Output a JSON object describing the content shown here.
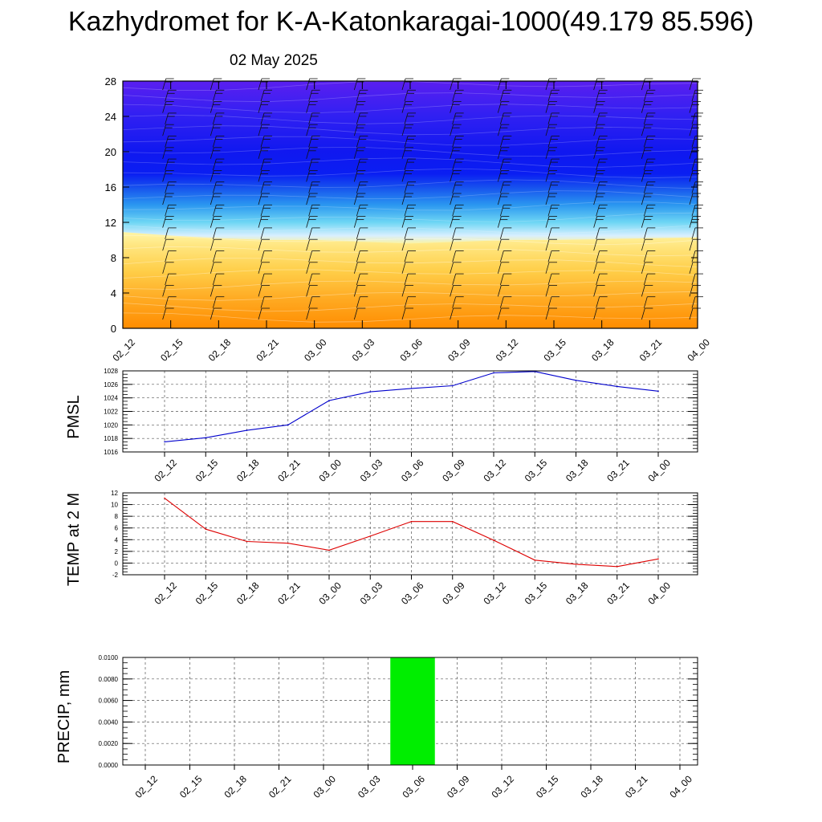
{
  "header": {
    "title": "Kazhydromet for K-A-Katonkaragai-1000(49.179 85.596)",
    "date": "02 May 2025"
  },
  "chart_data": [
    {
      "type": "heatmap",
      "name": "cross-section",
      "title": "",
      "xlabel": "",
      "ylabel": "",
      "ylim": [
        0,
        28
      ],
      "yticks": [
        "0",
        "4",
        "8",
        "12",
        "16",
        "20",
        "24",
        "28"
      ],
      "x": [
        "02_12",
        "02_15",
        "02_18",
        "02_21",
        "03_00",
        "03_03",
        "03_06",
        "03_09",
        "03_12",
        "03_15",
        "03_18",
        "03_21",
        "04_00"
      ],
      "bands": [
        {
          "y": 0,
          "color": "#ff8c00"
        },
        {
          "y": 2,
          "color": "#ff9a10"
        },
        {
          "y": 4,
          "color": "#ffaa20"
        },
        {
          "y": 6,
          "color": "#ffc43c"
        },
        {
          "y": 8,
          "color": "#ffdd66"
        },
        {
          "y": 9.5,
          "color": "#fff49a"
        },
        {
          "y": 10.5,
          "color": "#d8efff"
        },
        {
          "y": 12,
          "color": "#6ed6f4"
        },
        {
          "y": 14,
          "color": "#2a96f0"
        },
        {
          "y": 16,
          "color": "#1650ee"
        },
        {
          "y": 17.5,
          "color": "#0a1ef2"
        },
        {
          "y": 20,
          "color": "#1018f0"
        },
        {
          "y": 24,
          "color": "#3020f2"
        },
        {
          "y": 28,
          "color": "#5a1ff0"
        }
      ],
      "boundary_y": [
        10.9,
        10.5,
        10.2,
        10.0,
        10.0,
        9.8,
        9.6,
        9.8,
        10.0,
        10.0,
        10.1,
        10.2,
        10.3
      ]
    },
    {
      "type": "line",
      "name": "pmsl",
      "ylabel": "PMSL",
      "ylim": [
        1016,
        1028
      ],
      "yticks": [
        "1016",
        "1018",
        "1020",
        "1022",
        "1024",
        "1026",
        "1028"
      ],
      "categories": [
        "02_12",
        "02_15",
        "02_18",
        "02_21",
        "03_00",
        "03_03",
        "03_06",
        "03_09",
        "03_12",
        "03_15",
        "03_18",
        "03_21",
        "04_00"
      ],
      "series": [
        {
          "color": "#0000cc",
          "values": [
            1017.5,
            1018.1,
            1019.2,
            1020.0,
            1023.6,
            1024.9,
            1025.4,
            1025.8,
            1027.7,
            1027.9,
            1026.6,
            1025.7,
            1025.0
          ]
        }
      ],
      "grid": true
    },
    {
      "type": "line",
      "name": "temp",
      "ylabel": "TEMP at 2 M",
      "ylim": [
        -2,
        12
      ],
      "yticks": [
        "-2",
        "0",
        "2",
        "4",
        "6",
        "8",
        "10",
        "12"
      ],
      "categories": [
        "02_12",
        "02_15",
        "02_18",
        "02_21",
        "03_00",
        "03_03",
        "03_06",
        "03_09",
        "03_12",
        "03_15",
        "03_18",
        "03_21",
        "04_00"
      ],
      "series": [
        {
          "color": "#dd0000",
          "values": [
            11.1,
            5.8,
            3.7,
            3.4,
            2.2,
            4.6,
            7.1,
            7.1,
            3.9,
            0.5,
            -0.2,
            -0.6,
            0.7
          ]
        }
      ],
      "grid": true
    },
    {
      "type": "bar",
      "name": "precip",
      "ylabel": "PRECIP, mm",
      "ylim": [
        0,
        0.01
      ],
      "yticks": [
        "0.0000",
        "0.0020",
        "0.0040",
        "0.0060",
        "0.0080",
        "0.0100"
      ],
      "categories": [
        "02_12",
        "02_15",
        "02_18",
        "02_21",
        "03_00",
        "03_03",
        "03_06",
        "03_09",
        "03_12",
        "03_15",
        "03_18",
        "03_21",
        "04_00"
      ],
      "values": [
        0,
        0,
        0,
        0,
        0,
        0,
        0.01,
        0,
        0,
        0,
        0,
        0,
        0
      ],
      "bar_color": "#00ee00",
      "grid": true
    }
  ]
}
